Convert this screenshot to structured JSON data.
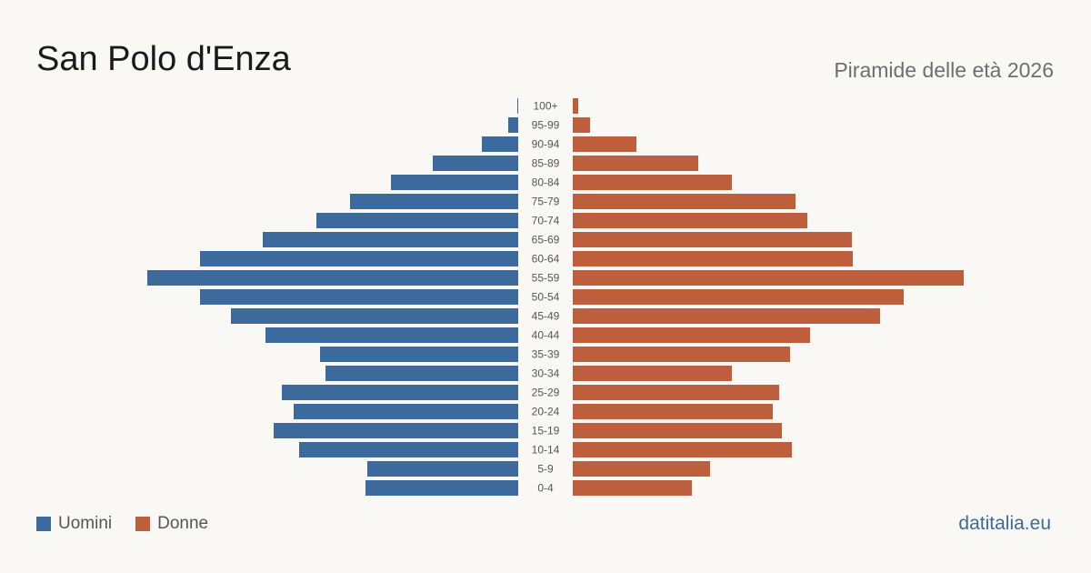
{
  "header": {
    "title": "San Polo d'Enza",
    "subtitle": "Piramide delle età 2026"
  },
  "legend": {
    "men_label": "Uomini",
    "women_label": "Donne"
  },
  "colors": {
    "men": "#3d6a9c",
    "women": "#bd5e3c"
  },
  "footer": {
    "source": "datitalia.eu"
  },
  "chart_data": {
    "type": "bar",
    "orientation": "horizontal-pyramid",
    "categories": [
      "100+",
      "95-99",
      "90-94",
      "85-89",
      "80-84",
      "75-79",
      "70-74",
      "65-69",
      "60-64",
      "55-59",
      "50-54",
      "45-49",
      "40-44",
      "35-39",
      "30-34",
      "25-29",
      "20-24",
      "15-19",
      "10-14",
      "5-9",
      "0-4"
    ],
    "series": [
      {
        "name": "Uomini",
        "values": [
          1,
          11,
          40,
          94,
          140,
          185,
          222,
          281,
          350,
          408,
          350,
          316,
          278,
          218,
          212,
          260,
          247,
          269,
          241,
          166,
          168
        ]
      },
      {
        "name": "Donne",
        "values": [
          6,
          19,
          70,
          138,
          175,
          245,
          258,
          307,
          308,
          430,
          364,
          338,
          261,
          239,
          175,
          227,
          220,
          230,
          241,
          151,
          131
        ]
      }
    ],
    "legend": "bottom-left",
    "grid": false
  }
}
